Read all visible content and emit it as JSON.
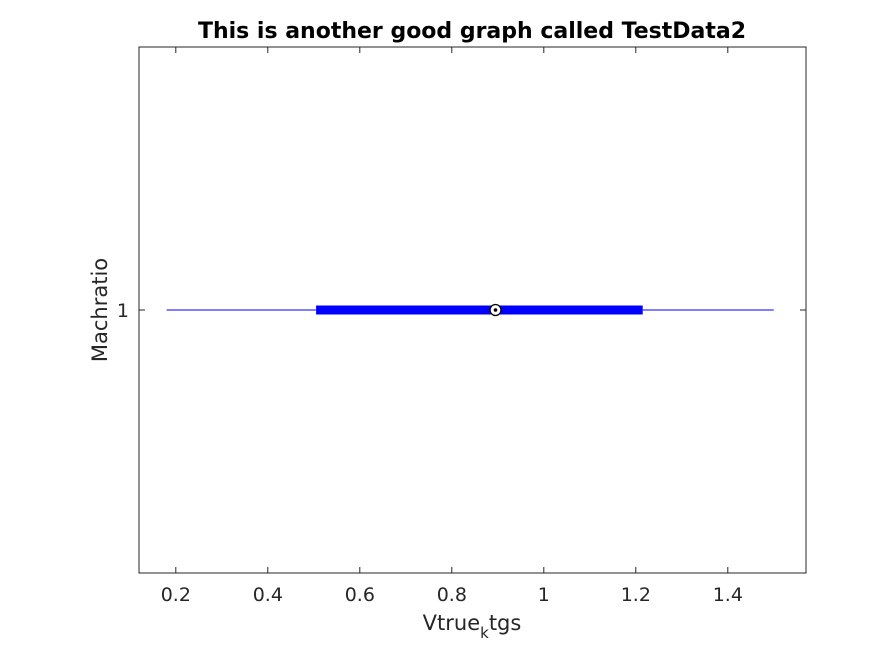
{
  "chart_data": {
    "type": "box",
    "orientation": "horizontal",
    "style": "compact",
    "title": "This is another good graph called TestData2",
    "xlabel": {
      "main": "Vtrue",
      "subscript": "k",
      "suffix": "tgs"
    },
    "ylabel": "Machratio",
    "xlim": [
      0.12,
      1.57
    ],
    "xticks": [
      0.2,
      0.4,
      0.6,
      0.8,
      1,
      1.2,
      1.4
    ],
    "xtick_labels": [
      "0.2",
      "0.4",
      "0.6",
      "0.8",
      "1",
      "1.2",
      "1.4"
    ],
    "categories": [
      "1"
    ],
    "boxes": [
      {
        "category": "1",
        "whisker_low": 0.18,
        "q1": 0.505,
        "median": 0.895,
        "q3": 1.215,
        "whisker_high": 1.5
      }
    ],
    "colors": {
      "box": "#0000ff",
      "whisker": "#0000ff",
      "median_marker": "#000000",
      "axes": "#262626"
    },
    "grid": false
  }
}
